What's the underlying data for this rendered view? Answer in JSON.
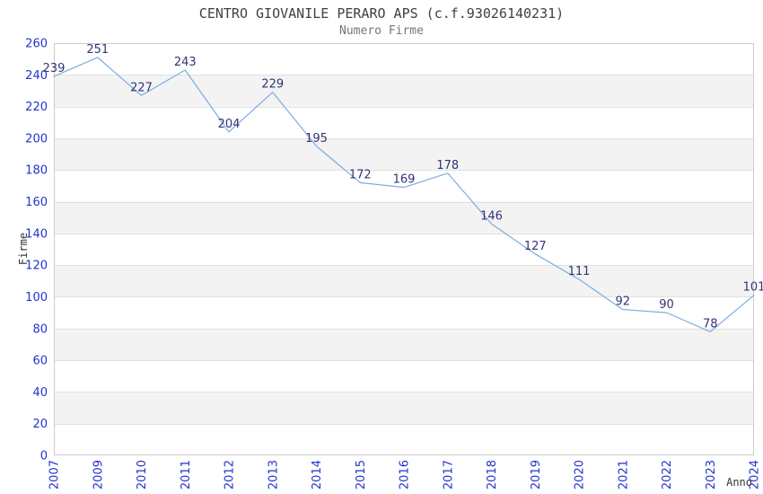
{
  "chart_data": {
    "type": "line",
    "title": "CENTRO GIOVANILE PERARO APS (c.f.93026140231)",
    "subtitle": "Numero Firme",
    "xlabel": "Anno",
    "ylabel": "Firme",
    "categories": [
      "2007",
      "2009",
      "2010",
      "2011",
      "2012",
      "2013",
      "2014",
      "2015",
      "2016",
      "2017",
      "2018",
      "2019",
      "2020",
      "2021",
      "2022",
      "2023",
      "2024"
    ],
    "values": [
      239,
      251,
      227,
      243,
      204,
      229,
      195,
      172,
      169,
      178,
      146,
      127,
      111,
      92,
      90,
      78,
      101
    ],
    "ylim": [
      0,
      260
    ],
    "yticks": [
      0,
      20,
      40,
      60,
      80,
      100,
      120,
      140,
      160,
      180,
      200,
      220,
      240,
      260
    ],
    "x_tick_rotation": -90,
    "grid": "horizontal",
    "striped_background": true,
    "legend": "none",
    "point_labels": true,
    "colors": {
      "line": "#7aade0",
      "point_label": "#333377",
      "tick_label": "#2233cc",
      "title": "#404040",
      "subtitle": "#777777",
      "axis_title": "#333333",
      "stripe": "#f3f3f3",
      "gridline": "#e0e0e0",
      "border": "#cccccc",
      "background": "#ffffff"
    }
  }
}
